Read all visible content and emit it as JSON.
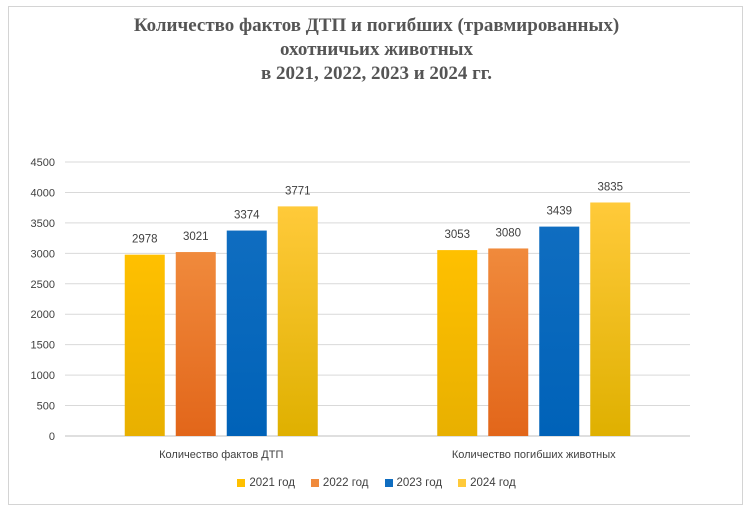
{
  "chart_data": {
    "type": "bar",
    "title_lines": [
      "Количество фактов ДТП и погибших (травмированных)",
      "охотничьих животных",
      "в 2021, 2022, 2023 и 2024 гг."
    ],
    "categories": [
      "Количество фактов ДТП",
      "Количество погибших животных"
    ],
    "series": [
      {
        "name": "2021 год",
        "values": [
          2978,
          3053
        ],
        "color": "#ffc000",
        "color2": "#e8b000"
      },
      {
        "name": "2022 год",
        "values": [
          3021,
          3080
        ],
        "color": "#f08a3c",
        "color2": "#e2661a"
      },
      {
        "name": "2023 год",
        "values": [
          3374,
          3439
        ],
        "color": "#0f6dc0",
        "color2": "#0062b8"
      },
      {
        "name": "2024 год",
        "values": [
          3771,
          3835
        ],
        "color": "#ffca3a",
        "color2": "#dfb000"
      }
    ],
    "yticks": [
      0,
      500,
      1000,
      1500,
      2000,
      2500,
      3000,
      3500,
      4000,
      4500
    ],
    "ylim": [
      0,
      4500
    ],
    "legend_position": "bottom",
    "xlabel": "",
    "ylabel": ""
  }
}
